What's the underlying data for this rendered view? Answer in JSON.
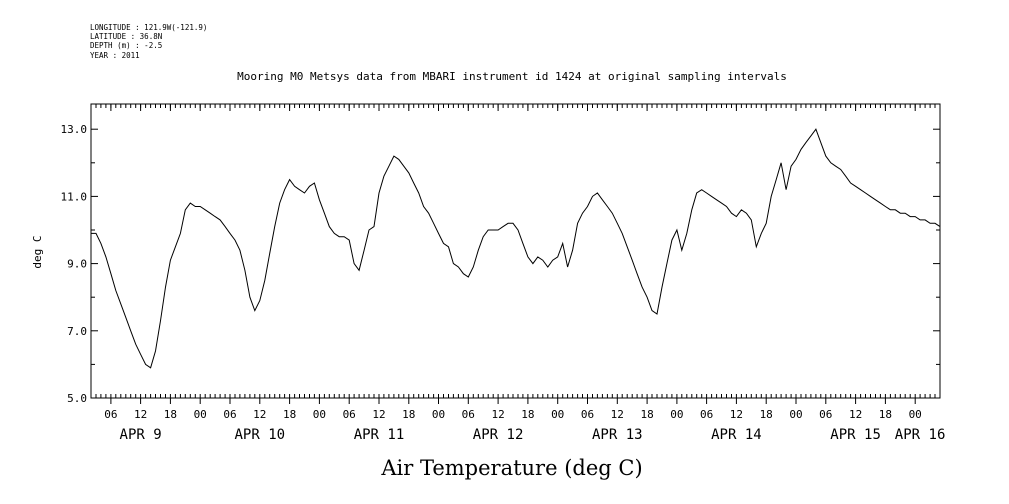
{
  "header": {
    "longitude": "LONGITUDE : 121.9W(-121.9)",
    "latitude": "LATITUDE : 36.8N",
    "depth": "DEPTH (m) : -2.5",
    "year": "YEAR : 2011"
  },
  "chart_data": {
    "type": "line",
    "title": "Mooring M0 Metsys data from MBARI instrument id 1424 at original sampling intervals",
    "xlabel": "Air Temperature (deg C)",
    "ylabel": "deg C",
    "ylim": [
      5.0,
      13.75
    ],
    "yticks": [
      5.0,
      7.0,
      9.0,
      11.0,
      13.0
    ],
    "ytick_labels": [
      "5.0",
      "7.0",
      "9.0",
      "11.0",
      "13.0"
    ],
    "xlim_hours": [
      2,
      173
    ],
    "hour_tick_labels": [
      "06",
      "12",
      "18",
      "00",
      "06",
      "12",
      "18",
      "00",
      "06",
      "12",
      "18",
      "00",
      "06",
      "12",
      "18",
      "00",
      "06",
      "12",
      "18",
      "00",
      "06",
      "12",
      "18",
      "00",
      "06",
      "12",
      "18",
      "00"
    ],
    "day_labels": [
      "APR  9",
      "APR 10",
      "APR 11",
      "APR 12",
      "APR 13",
      "APR 14",
      "APR 15",
      "APR 16"
    ],
    "grid": false,
    "legend": "none",
    "series": [
      {
        "color": "#000000",
        "x": [
          2,
          3,
          4,
          5,
          6,
          7,
          8,
          9,
          10,
          11,
          12,
          13,
          14,
          15,
          16,
          17,
          18,
          19,
          20,
          21,
          22,
          23,
          24,
          25,
          26,
          27,
          28,
          29,
          30,
          31,
          32,
          33,
          34,
          35,
          36,
          37,
          38,
          39,
          40,
          41,
          42,
          43,
          44,
          45,
          46,
          47,
          48,
          49,
          50,
          51,
          52,
          53,
          54,
          55,
          56,
          57,
          58,
          59,
          60,
          61,
          62,
          63,
          64,
          65,
          66,
          67,
          68,
          69,
          70,
          71,
          72,
          73,
          74,
          75,
          76,
          77,
          78,
          79,
          80,
          81,
          82,
          83,
          84,
          85,
          86,
          87,
          88,
          89,
          90,
          91,
          92,
          93,
          94,
          95,
          96,
          97,
          98,
          99,
          100,
          101,
          102,
          103,
          104,
          105,
          106,
          107,
          108,
          109,
          110,
          111,
          112,
          113,
          114,
          115,
          116,
          117,
          118,
          119,
          120,
          121,
          122,
          123,
          124,
          125,
          126,
          127,
          128,
          129,
          130,
          131,
          132,
          133,
          134,
          135,
          136,
          137,
          138,
          139,
          140,
          141,
          142,
          143,
          144,
          145,
          146,
          147,
          148,
          149,
          150,
          151,
          152,
          153,
          154,
          155,
          156,
          157,
          158,
          159,
          160,
          161,
          162,
          163,
          164,
          165,
          166,
          167,
          168,
          169,
          170,
          171,
          172,
          173
        ],
        "y": [
          9.9,
          9.9,
          9.6,
          9.2,
          8.7,
          8.2,
          7.8,
          7.4,
          7.0,
          6.6,
          6.3,
          6.0,
          5.9,
          6.4,
          7.3,
          8.3,
          9.1,
          9.5,
          9.9,
          10.6,
          10.8,
          10.7,
          10.7,
          10.6,
          10.5,
          10.4,
          10.3,
          10.1,
          9.9,
          9.7,
          9.4,
          8.8,
          8.0,
          7.6,
          7.9,
          8.5,
          9.3,
          10.1,
          10.8,
          11.2,
          11.5,
          11.3,
          11.2,
          11.1,
          11.3,
          11.4,
          10.9,
          10.5,
          10.1,
          9.9,
          9.8,
          9.8,
          9.7,
          9.0,
          8.8,
          9.4,
          10.0,
          10.1,
          11.1,
          11.6,
          11.9,
          12.2,
          12.1,
          11.9,
          11.7,
          11.4,
          11.1,
          10.7,
          10.5,
          10.2,
          9.9,
          9.6,
          9.5,
          9.0,
          8.9,
          8.7,
          8.6,
          8.9,
          9.4,
          9.8,
          10.0,
          10.0,
          10.0,
          10.1,
          10.2,
          10.2,
          10.0,
          9.6,
          9.2,
          9.0,
          9.2,
          9.1,
          8.9,
          9.1,
          9.2,
          9.6,
          8.9,
          9.4,
          10.2,
          10.5,
          10.7,
          11.0,
          11.1,
          10.9,
          10.7,
          10.5,
          10.2,
          9.9,
          9.5,
          9.1,
          8.7,
          8.3,
          8.0,
          7.6,
          7.5,
          8.3,
          9.0,
          9.7,
          10.0,
          9.4,
          9.9,
          10.6,
          11.1,
          11.2,
          11.1,
          11.0,
          10.9,
          10.8,
          10.7,
          10.5,
          10.4,
          10.6,
          10.5,
          10.3,
          9.5,
          9.9,
          10.2,
          11.0,
          11.5,
          12.0,
          11.2,
          11.9,
          12.1,
          12.4,
          12.6,
          12.8,
          13.0,
          12.6,
          12.2,
          12.0,
          11.9,
          11.8,
          11.6,
          11.4,
          11.3,
          11.2,
          11.1,
          11.0,
          10.9,
          10.8,
          10.7,
          10.6,
          10.6,
          10.5,
          10.5,
          10.4,
          10.4,
          10.3,
          10.3,
          10.2,
          10.2,
          10.1
        ]
      }
    ]
  }
}
